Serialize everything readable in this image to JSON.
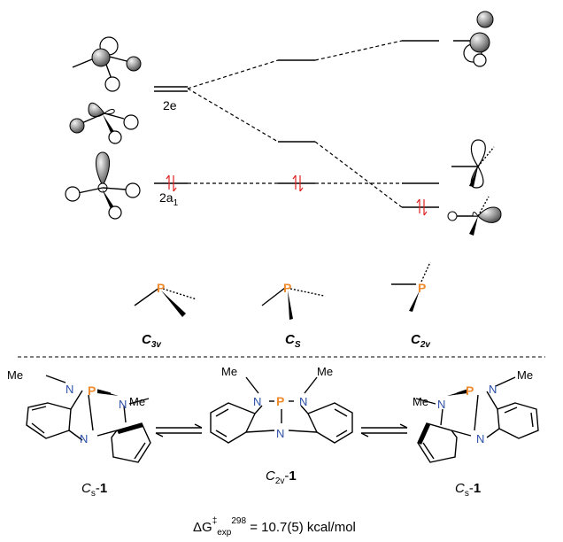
{
  "orbital_levels": {
    "degenerate_label": "2e",
    "a1_label_main": "2a",
    "a1_label_sub": "1"
  },
  "geometries": [
    {
      "label": "C",
      "sub": "3v"
    },
    {
      "label": "C",
      "sub": "S"
    },
    {
      "label": "C",
      "sub": "2v"
    }
  ],
  "atoms": {
    "phosphorus": "P",
    "nitrogen": "N",
    "methyl": "Me"
  },
  "compounds": [
    {
      "prefix": "C",
      "sub": "s",
      "suffix": "-",
      "number": "1"
    },
    {
      "prefix": "C",
      "sub": "2v",
      "suffix": "-",
      "number": "1"
    },
    {
      "prefix": "C",
      "sub": "s",
      "suffix": "-",
      "number": "1"
    }
  ],
  "energy": {
    "delta": "ΔG",
    "sup1": "‡",
    "sub": "exp",
    "sup2": "298",
    "value": " = 10.7(5) kcal/mol"
  },
  "colors": {
    "phosphorus": "#f08a2e",
    "nitrogen": "#2b4fa8",
    "electron_arrow": "#e02020"
  }
}
